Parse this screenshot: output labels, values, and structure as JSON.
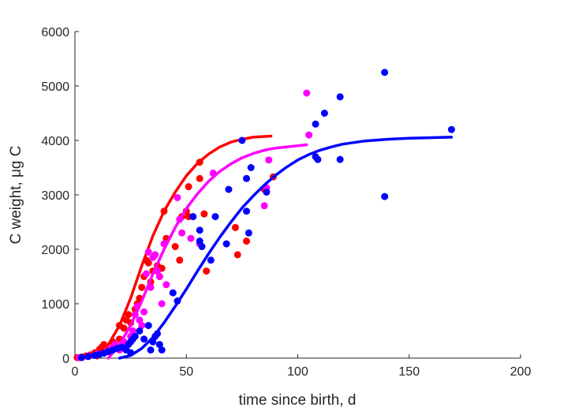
{
  "chart_data": {
    "type": "scatter",
    "title": "",
    "xlabel": "time since birth, d",
    "ylabel": "C weight, μg C",
    "xlim": [
      0,
      200
    ],
    "ylim": [
      0,
      6000
    ],
    "x_ticks": [
      "0",
      "50",
      "100",
      "150",
      "200"
    ],
    "y_ticks": [
      "0",
      "1000",
      "2000",
      "3000",
      "4000",
      "5000",
      "6000"
    ],
    "grid": false,
    "legend": "none",
    "series": [
      {
        "color": "#ff0000",
        "points": [
          [
            1,
            10
          ],
          [
            3,
            20
          ],
          [
            5,
            40
          ],
          [
            7,
            60
          ],
          [
            9,
            100
          ],
          [
            11,
            160
          ],
          [
            12,
            200
          ],
          [
            13,
            250
          ],
          [
            15,
            180
          ],
          [
            17,
            300
          ],
          [
            18,
            250
          ],
          [
            20,
            350
          ],
          [
            20,
            600
          ],
          [
            22,
            550
          ],
          [
            23,
            700
          ],
          [
            24,
            800
          ],
          [
            25,
            650
          ],
          [
            27,
            900
          ],
          [
            28,
            1000
          ],
          [
            29,
            1100
          ],
          [
            30,
            1300
          ],
          [
            31,
            1500
          ],
          [
            32,
            1800
          ],
          [
            33,
            1750
          ],
          [
            34,
            1400
          ],
          [
            35,
            1600
          ],
          [
            37,
            1700
          ],
          [
            38,
            1500
          ],
          [
            39,
            1650
          ],
          [
            40,
            2700
          ],
          [
            41,
            2200
          ],
          [
            45,
            2050
          ],
          [
            47,
            1800
          ],
          [
            48,
            2600
          ],
          [
            50,
            2700
          ],
          [
            51,
            2600
          ],
          [
            51,
            3150
          ],
          [
            53,
            2600
          ],
          [
            56,
            3300
          ],
          [
            56,
            3600
          ],
          [
            58,
            2650
          ],
          [
            59,
            1600
          ],
          [
            72,
            2400
          ],
          [
            73,
            1900
          ],
          [
            77,
            2150
          ],
          [
            85,
            3100
          ],
          [
            89,
            3330
          ]
        ],
        "curve": [
          [
            10,
            0
          ],
          [
            15,
            250
          ],
          [
            20,
            600
          ],
          [
            25,
            1100
          ],
          [
            30,
            1700
          ],
          [
            35,
            2250
          ],
          [
            40,
            2700
          ],
          [
            45,
            3050
          ],
          [
            50,
            3350
          ],
          [
            55,
            3580
          ],
          [
            60,
            3750
          ],
          [
            65,
            3880
          ],
          [
            70,
            3970
          ],
          [
            75,
            4020
          ],
          [
            80,
            4060
          ],
          [
            88,
            4080
          ]
        ]
      },
      {
        "color": "#ff00ff",
        "points": [
          [
            2,
            10
          ],
          [
            6,
            40
          ],
          [
            10,
            80
          ],
          [
            14,
            120
          ],
          [
            16,
            180
          ],
          [
            18,
            250
          ],
          [
            20,
            150
          ],
          [
            22,
            300
          ],
          [
            23,
            250
          ],
          [
            25,
            400
          ],
          [
            26,
            500
          ],
          [
            27,
            800
          ],
          [
            28,
            950
          ],
          [
            29,
            700
          ],
          [
            30,
            600
          ],
          [
            31,
            850
          ],
          [
            32,
            1550
          ],
          [
            33,
            1950
          ],
          [
            34,
            1300
          ],
          [
            35,
            1850
          ],
          [
            36,
            1900
          ],
          [
            37,
            1600
          ],
          [
            38,
            1500
          ],
          [
            39,
            1000
          ],
          [
            40,
            2100
          ],
          [
            41,
            1350
          ],
          [
            46,
            2950
          ],
          [
            47,
            2550
          ],
          [
            48,
            2300
          ],
          [
            52,
            2200
          ],
          [
            56,
            2100
          ],
          [
            62,
            3400
          ],
          [
            85,
            2800
          ],
          [
            86,
            3130
          ],
          [
            87,
            3640
          ],
          [
            104,
            4870
          ],
          [
            105,
            4100
          ]
        ],
        "curve": [
          [
            15,
            0
          ],
          [
            20,
            250
          ],
          [
            25,
            600
          ],
          [
            30,
            1050
          ],
          [
            35,
            1550
          ],
          [
            40,
            2000
          ],
          [
            45,
            2400
          ],
          [
            50,
            2750
          ],
          [
            55,
            3020
          ],
          [
            60,
            3250
          ],
          [
            65,
            3430
          ],
          [
            70,
            3570
          ],
          [
            75,
            3680
          ],
          [
            80,
            3760
          ],
          [
            85,
            3820
          ],
          [
            90,
            3860
          ],
          [
            95,
            3880
          ],
          [
            104,
            3920
          ]
        ]
      },
      {
        "color": "#0000ff",
        "points": [
          [
            3,
            10
          ],
          [
            6,
            30
          ],
          [
            9,
            50
          ],
          [
            11,
            70
          ],
          [
            13,
            90
          ],
          [
            15,
            120
          ],
          [
            17,
            150
          ],
          [
            19,
            180
          ],
          [
            21,
            200
          ],
          [
            23,
            150
          ],
          [
            24,
            250
          ],
          [
            25,
            300
          ],
          [
            25,
            100
          ],
          [
            26,
            350
          ],
          [
            27,
            400
          ],
          [
            29,
            500
          ],
          [
            31,
            350
          ],
          [
            33,
            600
          ],
          [
            34,
            150
          ],
          [
            35,
            300
          ],
          [
            36,
            400
          ],
          [
            37,
            450
          ],
          [
            38,
            250
          ],
          [
            39,
            150
          ],
          [
            44,
            1200
          ],
          [
            46,
            1050
          ],
          [
            53,
            2600
          ],
          [
            56,
            2350
          ],
          [
            56,
            2150
          ],
          [
            57,
            2050
          ],
          [
            61,
            1800
          ],
          [
            63,
            2600
          ],
          [
            68,
            2100
          ],
          [
            69,
            3100
          ],
          [
            75,
            4000
          ],
          [
            77,
            2700
          ],
          [
            77,
            3300
          ],
          [
            78,
            2300
          ],
          [
            79,
            3500
          ],
          [
            86,
            3050
          ],
          [
            108,
            4300
          ],
          [
            108,
            3700
          ],
          [
            109,
            3650
          ],
          [
            112,
            4500
          ],
          [
            119,
            4800
          ],
          [
            119,
            3650
          ],
          [
            139,
            5250
          ],
          [
            139,
            2970
          ],
          [
            169,
            4200
          ]
        ],
        "curve": [
          [
            20,
            0
          ],
          [
            25,
            50
          ],
          [
            30,
            180
          ],
          [
            35,
            380
          ],
          [
            40,
            650
          ],
          [
            45,
            950
          ],
          [
            50,
            1270
          ],
          [
            55,
            1600
          ],
          [
            60,
            1920
          ],
          [
            65,
            2220
          ],
          [
            70,
            2500
          ],
          [
            75,
            2760
          ],
          [
            80,
            2980
          ],
          [
            85,
            3180
          ],
          [
            90,
            3360
          ],
          [
            95,
            3510
          ],
          [
            100,
            3640
          ],
          [
            105,
            3740
          ],
          [
            110,
            3820
          ],
          [
            115,
            3880
          ],
          [
            120,
            3930
          ],
          [
            130,
            3990
          ],
          [
            140,
            4020
          ],
          [
            150,
            4040
          ],
          [
            160,
            4050
          ],
          [
            169,
            4060
          ]
        ]
      }
    ]
  }
}
